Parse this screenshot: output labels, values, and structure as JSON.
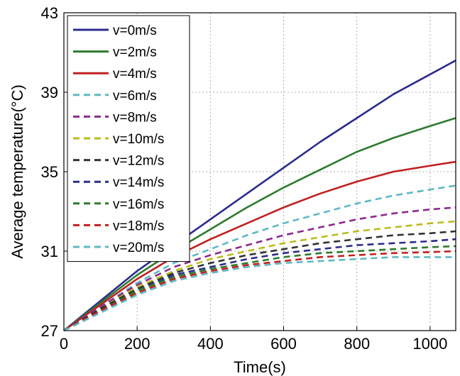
{
  "chart_data": {
    "type": "line",
    "title": "",
    "xlabel": "Time(s)",
    "ylabel": "Average temperature(°C)",
    "xlim": [
      0,
      1070
    ],
    "ylim": [
      27,
      43
    ],
    "xticks": [
      0,
      200,
      400,
      600,
      800,
      1000
    ],
    "yticks": [
      27,
      31,
      35,
      39,
      43
    ],
    "grid": true,
    "legend_position": "top-left",
    "x": [
      0,
      100,
      200,
      300,
      400,
      500,
      600,
      700,
      800,
      900,
      1000,
      1070
    ],
    "series": [
      {
        "name": "v=0m/s",
        "color": "#2b2b8c",
        "style": "solid",
        "values": [
          27.0,
          28.5,
          30.0,
          31.3,
          32.6,
          33.9,
          35.2,
          36.5,
          37.7,
          38.9,
          39.9,
          40.6
        ]
      },
      {
        "name": "v=2m/s",
        "color": "#2e7a2e",
        "style": "solid",
        "values": [
          27.0,
          28.4,
          29.8,
          31.0,
          32.1,
          33.2,
          34.2,
          35.1,
          36.0,
          36.7,
          37.3,
          37.7
        ]
      },
      {
        "name": "v=4m/s",
        "color": "#c02020",
        "style": "solid",
        "values": [
          27.0,
          28.3,
          29.6,
          30.7,
          31.6,
          32.4,
          33.2,
          33.9,
          34.5,
          35.0,
          35.3,
          35.5
        ]
      },
      {
        "name": "v=6m/s",
        "color": "#5fb8c4",
        "style": "dashed",
        "values": [
          27.0,
          28.2,
          29.4,
          30.4,
          31.1,
          31.8,
          32.4,
          32.9,
          33.4,
          33.8,
          34.1,
          34.3
        ]
      },
      {
        "name": "v=8m/s",
        "color": "#8c2a8c",
        "style": "dashed",
        "values": [
          27.0,
          28.2,
          29.3,
          30.2,
          30.8,
          31.3,
          31.8,
          32.2,
          32.6,
          32.9,
          33.1,
          33.2
        ]
      },
      {
        "name": "v=10m/s",
        "color": "#bcbc1e",
        "style": "dashed",
        "values": [
          27.0,
          28.1,
          29.2,
          30.0,
          30.6,
          31.0,
          31.4,
          31.7,
          32.0,
          32.2,
          32.4,
          32.5
        ]
      },
      {
        "name": "v=12m/s",
        "color": "#333333",
        "style": "dashed",
        "values": [
          27.0,
          28.1,
          29.1,
          29.9,
          30.4,
          30.8,
          31.1,
          31.4,
          31.6,
          31.8,
          31.9,
          32.0
        ]
      },
      {
        "name": "v=14m/s",
        "color": "#2b2b8c",
        "style": "dashed",
        "values": [
          27.0,
          28.0,
          29.0,
          29.8,
          30.2,
          30.6,
          30.9,
          31.1,
          31.3,
          31.4,
          31.5,
          31.6
        ]
      },
      {
        "name": "v=16m/s",
        "color": "#2e7a2e",
        "style": "dashed",
        "values": [
          27.0,
          28.0,
          29.0,
          29.7,
          30.1,
          30.4,
          30.7,
          30.9,
          31.0,
          31.1,
          31.2,
          31.25
        ]
      },
      {
        "name": "v=18m/s",
        "color": "#c02020",
        "style": "dashed",
        "values": [
          27.0,
          28.0,
          28.9,
          29.6,
          30.0,
          30.3,
          30.5,
          30.7,
          30.8,
          30.9,
          30.95,
          31.0
        ]
      },
      {
        "name": "v=20m/s",
        "color": "#5fb8c4",
        "style": "dashed",
        "values": [
          27.0,
          27.9,
          28.8,
          29.5,
          29.9,
          30.2,
          30.4,
          30.5,
          30.6,
          30.7,
          30.7,
          30.7
        ]
      }
    ]
  }
}
